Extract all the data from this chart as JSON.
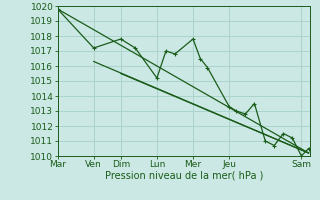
{
  "xlabel": "Pression niveau de la mer( hPa )",
  "bg_color": "#cce8e4",
  "line_color": "#1a5c1a",
  "grid_color": "#aad4cc",
  "ylim": [
    1010,
    1020
  ],
  "yticks": [
    1010,
    1011,
    1012,
    1013,
    1014,
    1015,
    1016,
    1017,
    1018,
    1019,
    1020
  ],
  "xlim": [
    0,
    14
  ],
  "day_labels": [
    "Mar",
    "Ven",
    "Dim",
    "Lun",
    "Mer",
    "Jeu",
    "Sam"
  ],
  "day_positions": [
    0.0,
    2.0,
    3.5,
    5.5,
    7.5,
    9.5,
    13.5
  ],
  "series_x": [
    0.0,
    2.0,
    3.5,
    4.3,
    5.5,
    6.0,
    6.5,
    7.5,
    7.9,
    8.3,
    9.5,
    9.9,
    10.4,
    10.9,
    11.5,
    12.0,
    12.5,
    13.0,
    13.5,
    13.9
  ],
  "series_y": [
    1019.8,
    1017.2,
    1017.8,
    1017.2,
    1015.2,
    1017.0,
    1016.8,
    1017.8,
    1016.5,
    1015.9,
    1013.3,
    1013.0,
    1012.8,
    1013.5,
    1011.0,
    1010.7,
    1011.5,
    1011.2,
    1010.0,
    1010.5
  ],
  "trend1_x": [
    0.0,
    13.9
  ],
  "trend1_y": [
    1019.8,
    1010.2
  ],
  "trend2_x": [
    2.0,
    13.9
  ],
  "trend2_y": [
    1016.3,
    1010.2
  ],
  "trend3_x": [
    3.5,
    13.9
  ],
  "trend3_y": [
    1015.5,
    1010.2
  ],
  "fontsize_label": 7,
  "fontsize_tick": 6.5
}
